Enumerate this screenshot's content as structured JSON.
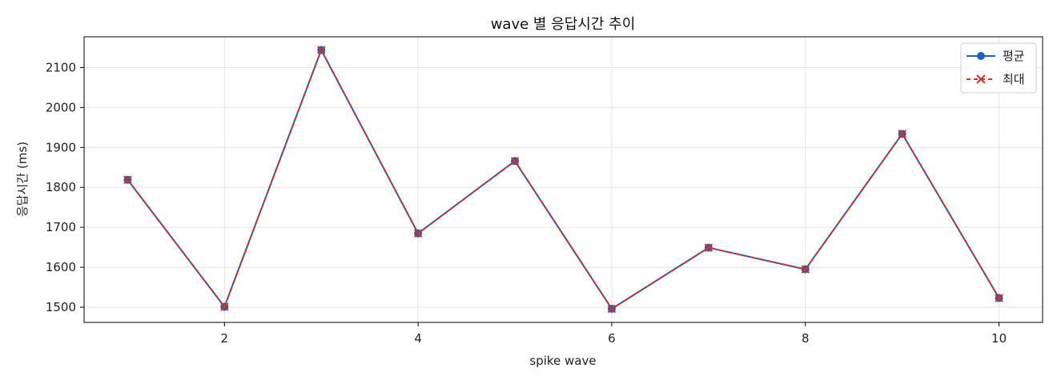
{
  "chart_data": {
    "type": "line",
    "title": "wave 별 응답시간 추이",
    "xlabel": "spike wave",
    "ylabel": "응답시간 (ms)",
    "x": [
      1,
      2,
      3,
      4,
      5,
      6,
      7,
      8,
      9,
      10
    ],
    "xlim": [
      0.55,
      10.45
    ],
    "ylim": [
      1462,
      2177
    ],
    "xticks": [
      2,
      4,
      6,
      8,
      10
    ],
    "yticks": [
      1500,
      1600,
      1700,
      1800,
      1900,
      2000,
      2100
    ],
    "grid": true,
    "legend_position": "top-right",
    "series": [
      {
        "name": "평균",
        "values": [
          1819,
          1501,
          2144,
          1685,
          1866,
          1496,
          1649,
          1595,
          1934,
          1523
        ],
        "color": "#1f63b5",
        "marker": "circle",
        "line_style": "solid"
      },
      {
        "name": "최대",
        "values": [
          1819,
          1501,
          2144,
          1685,
          1866,
          1496,
          1649,
          1595,
          1934,
          1523
        ],
        "color": "#d03030",
        "marker": "x",
        "line_style": "dashed"
      }
    ]
  }
}
